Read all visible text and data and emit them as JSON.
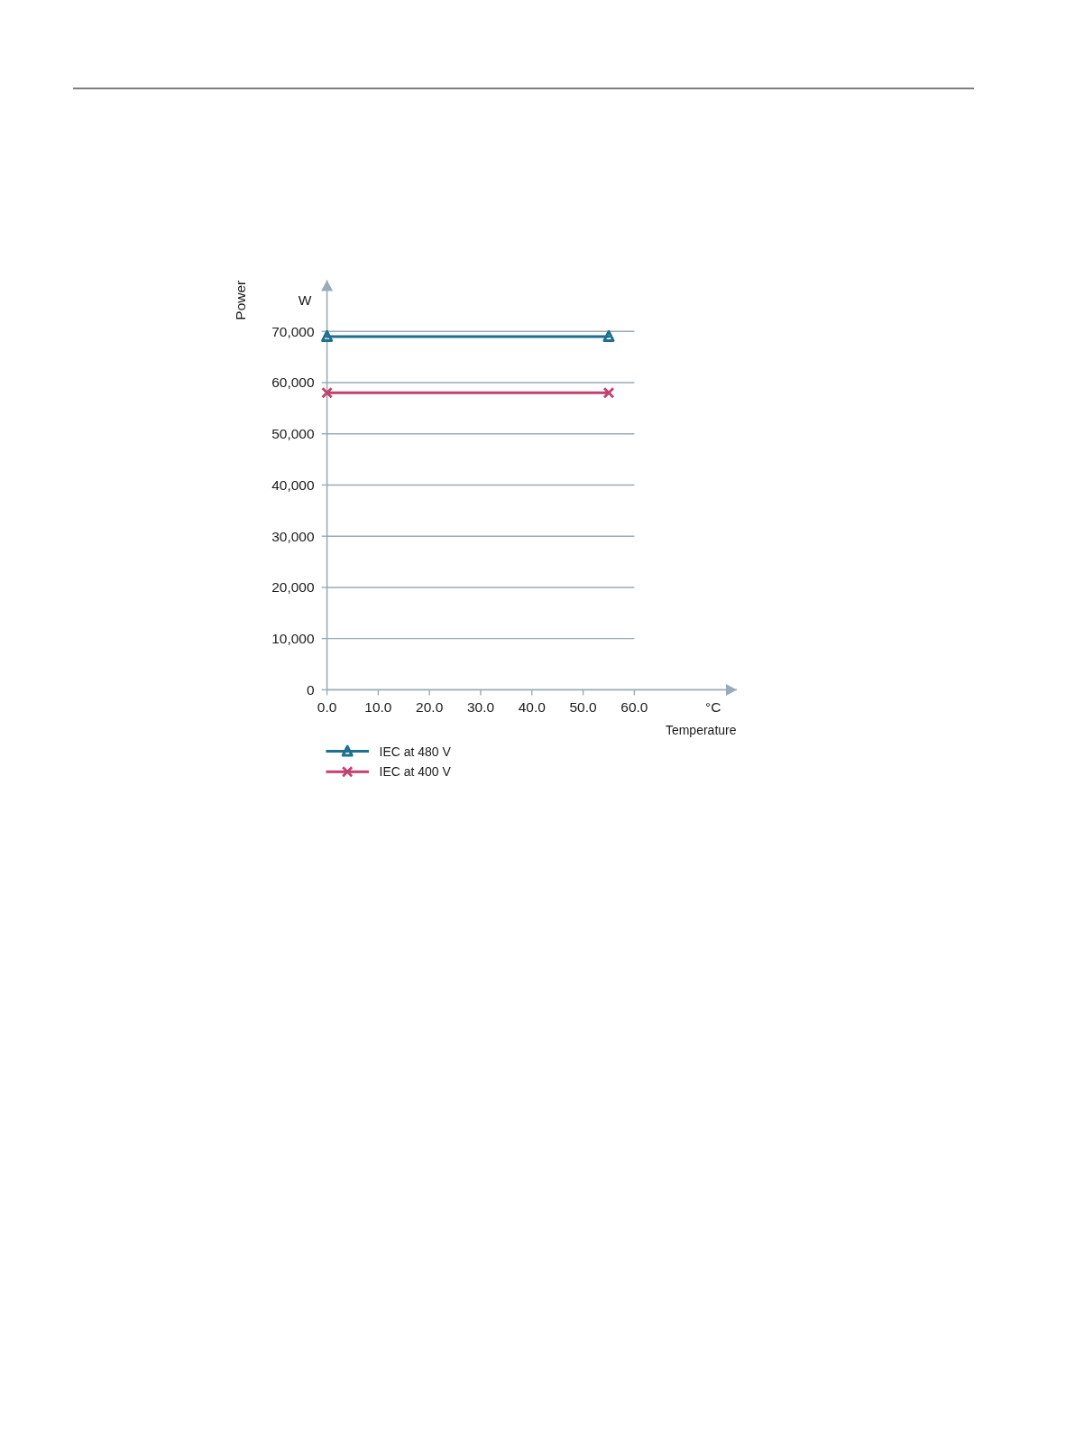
{
  "chart_data": {
    "type": "line",
    "xlabel": "Temperature",
    "ylabel": "Power",
    "annotations": [
      "W",
      "°C"
    ],
    "x": [
      0,
      55
    ],
    "series": [
      {
        "name": "IEC at 480 V",
        "color": "#1f6f8f",
        "marker": "triangle",
        "values": [
          69000,
          69000
        ]
      },
      {
        "name": "IEC at 400 V",
        "color": "#c2416f",
        "marker": "cross",
        "values": [
          58000,
          58000
        ]
      }
    ],
    "xlim": [
      0,
      80
    ],
    "xticks": [
      {
        "value": 0,
        "label": "0.0"
      },
      {
        "value": 10,
        "label": "10.0"
      },
      {
        "value": 20,
        "label": "20.0"
      },
      {
        "value": 30,
        "label": "30.0"
      },
      {
        "value": 40,
        "label": "40.0"
      },
      {
        "value": 50,
        "label": "50.0"
      },
      {
        "value": 60,
        "label": "60.0"
      }
    ],
    "ylim": [
      0,
      80000
    ],
    "yticks": [
      0,
      {
        "value": 10000,
        "label": "10,000"
      },
      {
        "value": 20000,
        "label": "20,000"
      },
      {
        "value": 30000,
        "label": "30,000"
      },
      {
        "value": 40000,
        "label": "40,000"
      },
      {
        "value": 50000,
        "label": "50,000"
      },
      {
        "value": 60000,
        "label": "60,000"
      },
      {
        "value": 70000,
        "label": "70,000"
      }
    ],
    "grid": "y",
    "legend": "bottom"
  }
}
